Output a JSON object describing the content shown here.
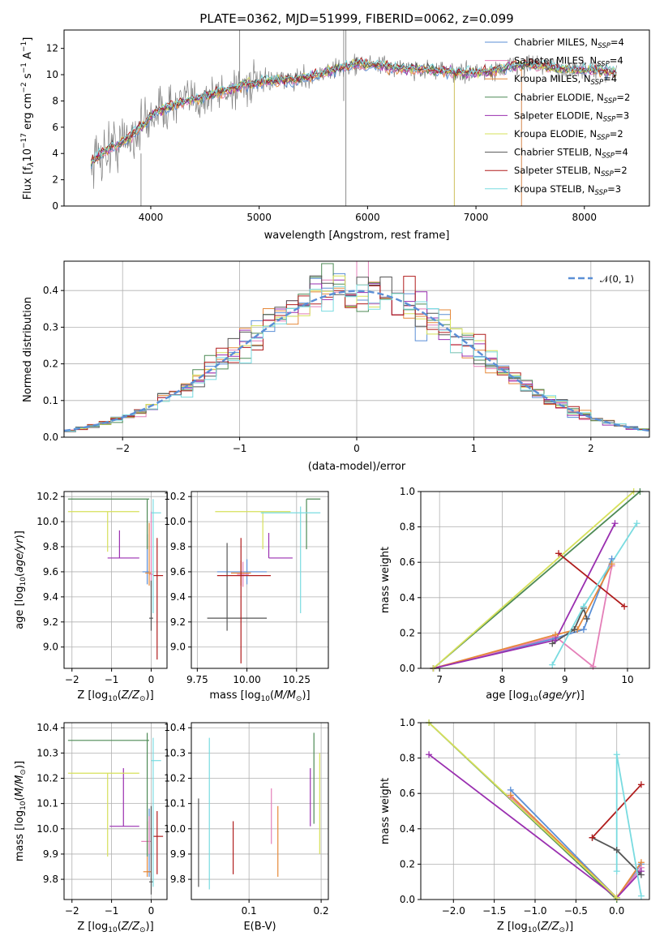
{
  "colors": {
    "chabrier_miles": "#5b8fd6",
    "salpeter_miles": "#e47fb8",
    "kroupa_miles": "#e6893a",
    "chabrier_elodie": "#4d8a55",
    "salpeter_elodie": "#9a2fb0",
    "kroupa_elodie": "#d6e05a",
    "chabrier_stelib": "#555555",
    "salpeter_stelib": "#b01c1c",
    "kroupa_stelib": "#79dbe0",
    "data": "#808080",
    "normal": "#5b8fd6"
  },
  "chart_data": [
    {
      "id": "spectrum",
      "type": "line",
      "title": "PLATE=0362, MJD=51999, FIBERID=0062, z=0.099",
      "xlabel": "wavelength [Angstrom, rest frame]",
      "ylabel": "Flux [fλ10⁻¹⁷ erg cm⁻² s⁻¹ A⁻¹]",
      "xlim": [
        3200,
        8600
      ],
      "ylim": [
        0,
        13.4
      ],
      "xticks": [
        "4000",
        "5000",
        "6000",
        "7000",
        "8000"
      ],
      "yticks": [
        "0",
        "2",
        "4",
        "6",
        "8",
        "10",
        "12"
      ],
      "continuum": {
        "x": [
          3450,
          3550,
          3650,
          3750,
          3850,
          3950,
          4050,
          4150,
          4300,
          4500,
          4700,
          4900,
          5100,
          5300,
          5500,
          5700,
          5900,
          6100,
          6300,
          6500,
          6700,
          6900,
          7100,
          7300,
          7500,
          7700,
          7900,
          8100,
          8300
        ],
        "y": [
          3.4,
          4.0,
          4.6,
          4.9,
          5.6,
          6.3,
          7.2,
          7.5,
          7.9,
          8.3,
          8.8,
          9.3,
          9.5,
          9.6,
          9.9,
          10.4,
          10.8,
          10.7,
          10.5,
          10.4,
          10.3,
          10.1,
          10.2,
          10.6,
          10.8,
          10.5,
          10.4,
          10.3,
          10.2
        ]
      },
      "legend_placement": "top-right",
      "series": [
        {
          "name": "Chabrier MILES, N_SSP=4"
        },
        {
          "name": "Salpeter MILES, N_SSP=4"
        },
        {
          "name": "Kroupa MILES, N_SSP=4"
        },
        {
          "name": "Chabrier ELODIE, N_SSP=2"
        },
        {
          "name": "Salpeter ELODIE, N_SSP=3"
        },
        {
          "name": "Kroupa ELODIE, N_SSP=2"
        },
        {
          "name": "Chabrier STELIB, N_SSP=4"
        },
        {
          "name": "Salpeter STELIB, N_SSP=2"
        },
        {
          "name": "Kroupa STELIB, N_SSP=3"
        }
      ]
    },
    {
      "id": "residuals",
      "type": "histogram",
      "xlabel": "(data-model)/error",
      "ylabel": "Normed distribution",
      "xlim": [
        -2.5,
        2.5
      ],
      "ylim": [
        0,
        0.48
      ],
      "xticks": [
        "−2",
        "−1",
        "0",
        "1",
        "2"
      ],
      "yticks": [
        "0.0",
        "0.1",
        "0.2",
        "0.3",
        "0.4"
      ],
      "bin_width": 0.1,
      "legend": "𝒩(0, 1)",
      "legend_placement": "top-right"
    },
    {
      "id": "age_vs_Z",
      "type": "errorbar",
      "xlabel": "Z [log₁₀(Z/Z⊙)]",
      "ylabel": "age  [log₁₀(age/yr)]",
      "xlim": [
        -2.2,
        0.4
      ],
      "ylim": [
        8.83,
        10.24
      ],
      "xticks": [
        "−2",
        "−1",
        "0"
      ],
      "yticks": [
        "9.0",
        "9.2",
        "9.4",
        "9.6",
        "9.8",
        "10.0",
        "10.2"
      ],
      "points": [
        {
          "series": "chabrier_miles",
          "x": -0.1,
          "xerr": [
            0.12,
            0.05
          ],
          "y": 9.6,
          "yerr": [
            0.1,
            0.3
          ]
        },
        {
          "series": "salpeter_miles",
          "x": 0.0,
          "xerr": [
            0.05,
            0.05
          ],
          "y": 9.58,
          "yerr": [
            0.1,
            0.5
          ]
        },
        {
          "series": "kroupa_miles",
          "x": -0.05,
          "xerr": [
            0.1,
            0.05
          ],
          "y": 9.59,
          "yerr": [
            0.1,
            0.4
          ]
        },
        {
          "series": "chabrier_elodie",
          "x": -0.1,
          "xerr": [
            2.0,
            0.05
          ],
          "y": 10.18,
          "yerr": [
            0.4,
            0.0
          ]
        },
        {
          "series": "salpeter_elodie",
          "x": -0.8,
          "xerr": [
            0.3,
            0.5
          ],
          "y": 9.71,
          "yerr": [
            0.0,
            0.22
          ]
        },
        {
          "series": "kroupa_elodie",
          "x": -1.1,
          "xerr": [
            1.0,
            0.8
          ],
          "y": 10.08,
          "yerr": [
            0.32,
            0.0
          ]
        },
        {
          "series": "chabrier_stelib",
          "x": 0.0,
          "xerr": [
            0.05,
            0.05
          ],
          "y": 9.23,
          "yerr": [
            0.1,
            0.3
          ]
        },
        {
          "series": "salpeter_stelib",
          "x": 0.15,
          "xerr": [
            0.1,
            0.15
          ],
          "y": 9.57,
          "yerr": [
            0.67,
            0.3
          ]
        },
        {
          "series": "kroupa_stelib",
          "x": 0.05,
          "xerr": [
            0.05,
            0.2
          ],
          "y": 10.07,
          "yerr": [
            0.8,
            0.11
          ]
        }
      ]
    },
    {
      "id": "age_vs_mass",
      "type": "errorbar",
      "xlabel": "mass [log₁₀(M/M⊙)]",
      "ylabel": "",
      "xlim": [
        9.72,
        10.41
      ],
      "ylim": [
        8.83,
        10.24
      ],
      "xticks": [
        "9.75",
        "10.00",
        "10.25"
      ],
      "yticks": [
        "9.0",
        "9.2",
        "9.4",
        "9.6",
        "9.8",
        "10.0",
        "10.2"
      ],
      "points": [
        {
          "series": "chabrier_miles",
          "x": 10.0,
          "xerr": [
            0.15,
            0.1
          ],
          "y": 9.6,
          "yerr": [
            0.1,
            0.1
          ]
        },
        {
          "series": "salpeter_miles",
          "x": 9.98,
          "xerr": [
            0.03,
            0.03
          ],
          "y": 9.58,
          "yerr": [
            0.1,
            0.1
          ]
        },
        {
          "series": "kroupa_miles",
          "x": 9.97,
          "xerr": [
            0.05,
            0.05
          ],
          "y": 9.59,
          "yerr": [
            0.1,
            0.1
          ]
        },
        {
          "series": "chabrier_elodie",
          "x": 10.3,
          "xerr": [
            0.0,
            0.07
          ],
          "y": 10.18,
          "yerr": [
            0.4,
            0.0
          ]
        },
        {
          "series": "salpeter_elodie",
          "x": 10.11,
          "xerr": [
            0.0,
            0.12
          ],
          "y": 9.71,
          "yerr": [
            0.0,
            0.2
          ]
        },
        {
          "series": "kroupa_elodie",
          "x": 10.08,
          "xerr": [
            0.24,
            0.14
          ],
          "y": 10.08,
          "yerr": [
            0.3,
            0.0
          ]
        },
        {
          "series": "chabrier_stelib",
          "x": 9.9,
          "xerr": [
            0.1,
            0.2
          ],
          "y": 9.23,
          "yerr": [
            0.1,
            0.6
          ]
        },
        {
          "series": "salpeter_stelib",
          "x": 9.97,
          "xerr": [
            0.12,
            0.15
          ],
          "y": 9.57,
          "yerr": [
            0.7,
            0.3
          ]
        },
        {
          "series": "kroupa_stelib",
          "x": 10.27,
          "xerr": [
            0.2,
            0.1
          ],
          "y": 10.07,
          "yerr": [
            0.8,
            0.05
          ]
        }
      ]
    },
    {
      "id": "weight_vs_age",
      "type": "line",
      "xlabel": "age  [log₁₀(age/yr)]",
      "ylabel": "mass weight",
      "xlim": [
        6.7,
        10.35
      ],
      "ylim": [
        0,
        1
      ],
      "xticks": [
        "7",
        "8",
        "9",
        "10"
      ],
      "yticks": [
        "0.0",
        "0.2",
        "0.4",
        "0.6",
        "0.8",
        "1.0"
      ],
      "series": [
        {
          "key": "chabrier_miles",
          "x": [
            6.9,
            8.85,
            9.3,
            9.75
          ],
          "y": [
            0.0,
            0.17,
            0.22,
            0.62
          ]
        },
        {
          "key": "salpeter_miles",
          "x": [
            6.9,
            8.85,
            9.45,
            9.75
          ],
          "y": [
            0.0,
            0.18,
            0.01,
            0.58
          ]
        },
        {
          "key": "kroupa_miles",
          "x": [
            6.9,
            8.85,
            9.2,
            9.75
          ],
          "y": [
            0.0,
            0.19,
            0.22,
            0.59
          ]
        },
        {
          "key": "chabrier_elodie",
          "x": [
            6.9,
            10.2
          ],
          "y": [
            0.0,
            1.0
          ]
        },
        {
          "key": "salpeter_elodie",
          "x": [
            6.9,
            8.85,
            9.8
          ],
          "y": [
            0.0,
            0.16,
            0.82
          ]
        },
        {
          "key": "kroupa_elodie",
          "x": [
            6.9,
            10.1
          ],
          "y": [
            0.0,
            1.0
          ]
        },
        {
          "key": "chabrier_stelib",
          "x": [
            8.8,
            9.15,
            9.3,
            9.35
          ],
          "y": [
            0.14,
            0.22,
            0.34,
            0.28
          ]
        },
        {
          "key": "salpeter_stelib",
          "x": [
            8.9,
            9.95
          ],
          "y": [
            0.65,
            0.35
          ]
        },
        {
          "key": "kroupa_stelib",
          "x": [
            8.8,
            9.3,
            10.15
          ],
          "y": [
            0.02,
            0.35,
            0.82
          ]
        }
      ]
    },
    {
      "id": "mass_vs_Z",
      "type": "errorbar",
      "xlabel": "Z [log₁₀(Z/Z⊙)]",
      "ylabel": "mass [log₁₀(M/M⊙)]",
      "xlim": [
        -2.2,
        0.4
      ],
      "ylim": [
        9.72,
        10.42
      ],
      "xticks": [
        "−2",
        "−1",
        "0"
      ],
      "yticks": [
        "9.8",
        "9.9",
        "10.0",
        "10.1",
        "10.2",
        "10.3",
        "10.4"
      ],
      "points": [
        {
          "series": "chabrier_miles",
          "x": -0.05,
          "xerr": [
            0.05,
            0.05
          ],
          "y": 9.83,
          "yerr": [
            0.02,
            0.25
          ]
        },
        {
          "series": "salpeter_miles",
          "x": -0.05,
          "xerr": [
            0.2,
            0.05
          ],
          "y": 9.95,
          "yerr": [
            0.05,
            0.1
          ]
        },
        {
          "series": "kroupa_miles",
          "x": -0.1,
          "xerr": [
            0.1,
            0.1
          ],
          "y": 9.83,
          "yerr": [
            0.02,
            0.2
          ]
        },
        {
          "series": "chabrier_elodie",
          "x": -0.1,
          "xerr": [
            2.0,
            0.05
          ],
          "y": 10.35,
          "yerr": [
            0.46,
            0.03
          ]
        },
        {
          "series": "salpeter_elodie",
          "x": -0.7,
          "xerr": [
            0.35,
            0.4
          ],
          "y": 10.01,
          "yerr": [
            0.0,
            0.23
          ]
        },
        {
          "series": "kroupa_elodie",
          "x": -1.1,
          "xerr": [
            1.0,
            0.8
          ],
          "y": 10.22,
          "yerr": [
            0.33,
            0.0
          ]
        },
        {
          "series": "chabrier_stelib",
          "x": 0.0,
          "xerr": [
            0.05,
            0.05
          ],
          "y": 9.79,
          "yerr": [
            0.05,
            0.3
          ]
        },
        {
          "series": "salpeter_stelib",
          "x": 0.15,
          "xerr": [
            0.1,
            0.15
          ],
          "y": 9.97,
          "yerr": [
            0.15,
            0.1
          ]
        },
        {
          "series": "kroupa_stelib",
          "x": 0.05,
          "xerr": [
            0.05,
            0.2
          ],
          "y": 10.27,
          "yerr": [
            0.5,
            0.09
          ]
        }
      ]
    },
    {
      "id": "mass_vs_ebv",
      "type": "errorbar",
      "xlabel": "E(B-V)",
      "ylabel": "",
      "xlim": [
        0.02,
        0.21
      ],
      "ylim": [
        9.72,
        10.42
      ],
      "xticks": [
        "0.1",
        "0.2"
      ],
      "yticks": [
        "9.8",
        "9.9",
        "10.0",
        "10.1",
        "10.2",
        "10.3",
        "10.4"
      ],
      "points": [
        {
          "series": "chabrier_stelib",
          "x": 0.03,
          "y": 9.97,
          "yerr": [
            0.2,
            0.15
          ]
        },
        {
          "series": "kroupa_stelib",
          "x": 0.045,
          "y": 10.06,
          "yerr": [
            0.3,
            0.3
          ]
        },
        {
          "series": "salpeter_stelib",
          "x": 0.078,
          "y": 9.92,
          "yerr": [
            0.1,
            0.11
          ]
        },
        {
          "series": "salpeter_miles",
          "x": 0.131,
          "y": 10.05,
          "yerr": [
            0.11,
            0.11
          ]
        },
        {
          "series": "kroupa_miles",
          "x": 0.14,
          "y": 9.95,
          "yerr": [
            0.14,
            0.14
          ]
        },
        {
          "series": "salpeter_elodie",
          "x": 0.185,
          "y": 10.12,
          "yerr": [
            0.11,
            0.12
          ]
        },
        {
          "series": "chabrier_elodie",
          "x": 0.19,
          "y": 10.2,
          "yerr": [
            0.18,
            0.18
          ]
        },
        {
          "series": "kroupa_elodie",
          "x": 0.198,
          "y": 10.1,
          "yerr": [
            0.2,
            0.2
          ]
        }
      ]
    },
    {
      "id": "weight_vs_Z",
      "type": "line",
      "xlabel": "Z [log₁₀(Z/Z⊙)]",
      "ylabel": "mass weight",
      "xlim": [
        -2.4,
        0.4
      ],
      "ylim": [
        0,
        1
      ],
      "xticks": [
        "−2.0",
        "−1.5",
        "−1.0",
        "−0.5",
        "0.0"
      ],
      "yticks": [
        "0.0",
        "0.2",
        "0.4",
        "0.6",
        "0.8",
        "1.0"
      ],
      "series": [
        {
          "key": "chabrier_miles",
          "x": [
            -1.3,
            0.0,
            0.3
          ],
          "y": [
            0.62,
            0.01,
            0.2
          ]
        },
        {
          "key": "salpeter_miles",
          "x": [
            -1.3,
            0.0,
            0.3
          ],
          "y": [
            0.58,
            0.01,
            0.18
          ]
        },
        {
          "key": "kroupa_miles",
          "x": [
            -1.3,
            0.0,
            0.3
          ],
          "y": [
            0.59,
            0.01,
            0.21
          ]
        },
        {
          "key": "chabrier_elodie",
          "x": [
            -2.3,
            0.0
          ],
          "y": [
            1.0,
            0.0
          ]
        },
        {
          "key": "salpeter_elodie",
          "x": [
            -2.3,
            0.0,
            0.3
          ],
          "y": [
            0.82,
            0.01,
            0.16
          ]
        },
        {
          "key": "kroupa_elodie",
          "x": [
            -2.3,
            0.0
          ],
          "y": [
            1.0,
            0.01
          ]
        },
        {
          "key": "chabrier_stelib",
          "x": [
            -0.3,
            0.0,
            0.3
          ],
          "y": [
            0.35,
            0.28,
            0.14
          ]
        },
        {
          "key": "salpeter_stelib",
          "x": [
            -0.3,
            0.3
          ],
          "y": [
            0.35,
            0.65
          ]
        },
        {
          "key": "kroupa_stelib",
          "x": [
            0.0,
            0.0,
            0.3
          ],
          "y": [
            0.16,
            0.82,
            0.02
          ]
        }
      ]
    }
  ]
}
